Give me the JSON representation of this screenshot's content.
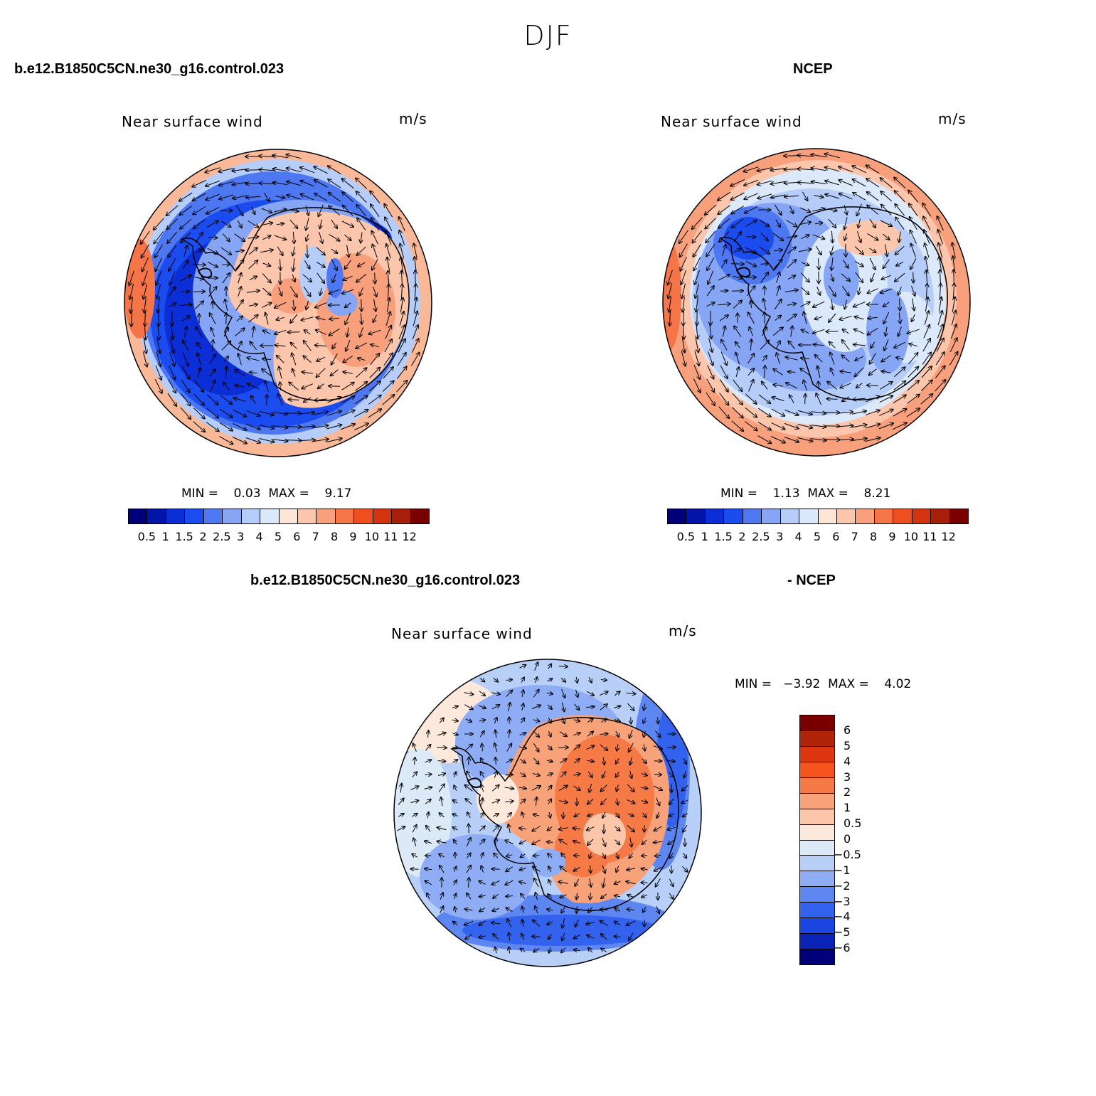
{
  "figure": {
    "season": "DJF"
  },
  "panels": {
    "model": {
      "case_label": "b.e12.B1850C5CN.ne30_g16.control.023",
      "title": "Near surface wind",
      "units": "m/s",
      "stats": "MIN =    0.03  MAX =    9.17",
      "colorbar": {
        "colors": [
          "#00007a",
          "#0314a8",
          "#0b2ed6",
          "#1a4cf0",
          "#4d78f2",
          "#86a6f5",
          "#b6cdf9",
          "#dce9fb",
          "#fde6d8",
          "#fcc6ac",
          "#f8a07b",
          "#f57548",
          "#ef4e1e",
          "#d3340f",
          "#a61f08",
          "#7a0000"
        ],
        "labels": [
          "0.5",
          "1",
          "1.5",
          "2",
          "2.5",
          "3",
          "4",
          "5",
          "6",
          "7",
          "8",
          "9",
          "10",
          "11",
          "12"
        ]
      }
    },
    "obs": {
      "case_label": "NCEP",
      "title": "Near surface wind",
      "units": "m/s",
      "stats": "MIN =    1.13  MAX =    8.21",
      "colorbar": {
        "colors": [
          "#00007a",
          "#0314a8",
          "#0b2ed6",
          "#1a4cf0",
          "#4d78f2",
          "#86a6f5",
          "#b6cdf9",
          "#dce9fb",
          "#fde6d8",
          "#fcc6ac",
          "#f8a07b",
          "#f57548",
          "#ef4e1e",
          "#d3340f",
          "#a61f08",
          "#7a0000"
        ],
        "labels": [
          "0.5",
          "1",
          "1.5",
          "2",
          "2.5",
          "3",
          "4",
          "5",
          "6",
          "7",
          "8",
          "9",
          "10",
          "11",
          "12"
        ]
      }
    },
    "diff": {
      "case_label": "b.e12.B1850C5CN.ne30_g16.control.023",
      "case_label_2": "- NCEP",
      "title": "Near surface wind",
      "units": "m/s",
      "stats": "MIN =   −3.92  MAX =    4.02",
      "colorbar": {
        "colors": [
          "#7a0000",
          "#b0240a",
          "#dc3510",
          "#f5541e",
          "#f57a46",
          "#f8a27a",
          "#fbc6aa",
          "#fde9dc",
          "#dceaf8",
          "#b8d0f8",
          "#8eadf4",
          "#5e86f0",
          "#3363ee",
          "#1a45e0",
          "#0b24b8",
          "#00007a"
        ],
        "labels": [
          "6",
          "5",
          "4",
          "3",
          "2",
          "1",
          "0.5",
          "0",
          "−0.5",
          "−1",
          "−2",
          "−3",
          "−4",
          "−5",
          "−6"
        ]
      }
    }
  }
}
